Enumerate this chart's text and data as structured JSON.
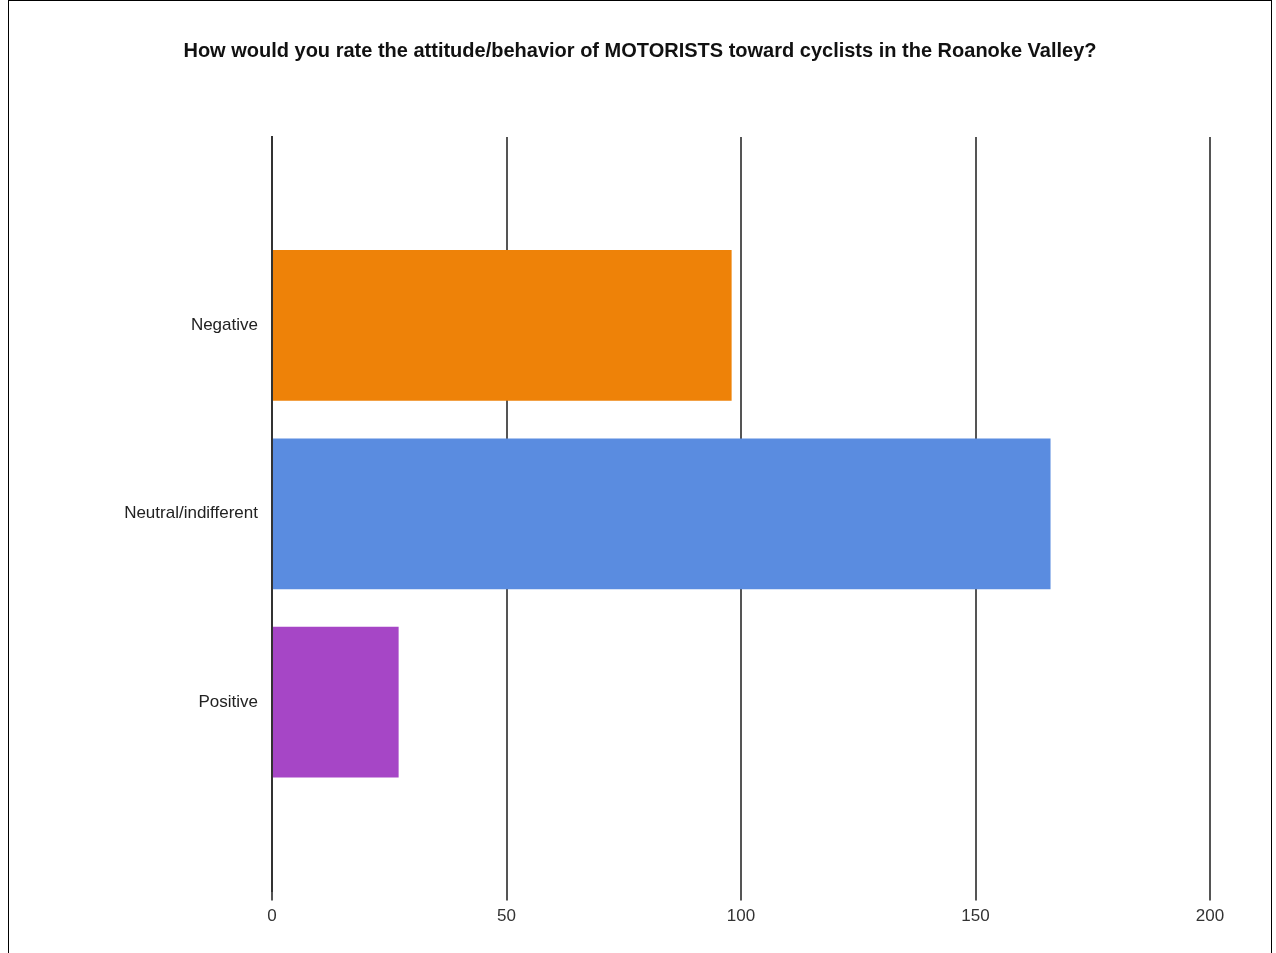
{
  "chart_data": {
    "type": "bar",
    "orientation": "horizontal",
    "title": "How would you rate the attitude/behavior of MOTORISTS toward cyclists in the Roanoke Valley?",
    "categories": [
      "Negative",
      "Neutral/indifferent",
      "Positive"
    ],
    "values": [
      98,
      166,
      27
    ],
    "colors": [
      "#ee8208",
      "#5a8ce0",
      "#a646c6"
    ],
    "xlim": [
      0,
      200
    ],
    "xticks": [
      0,
      50,
      100,
      150,
      200
    ],
    "grid": "x",
    "legend": false
  }
}
